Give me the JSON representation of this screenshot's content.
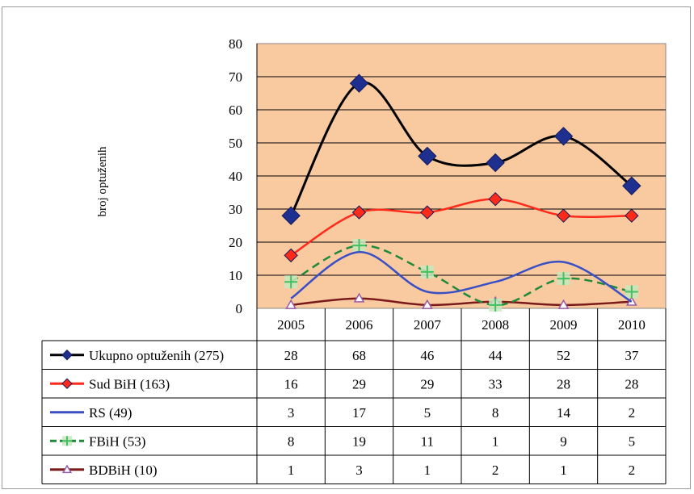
{
  "chart_data": {
    "type": "line",
    "title": "",
    "xlabel": "",
    "ylabel": "broj optuženih",
    "ylim": [
      0,
      80
    ],
    "yticks": [
      "0",
      "10",
      "20",
      "30",
      "40",
      "50",
      "60",
      "70",
      "80"
    ],
    "categories": [
      "2005",
      "2006",
      "2007",
      "2008",
      "2009",
      "2010"
    ],
    "plot_background": "#f9c9a0",
    "grid": "horizontal",
    "legend": "data-table",
    "series": [
      {
        "name": "Ukupno optuženih (275)",
        "values": [
          28,
          68,
          46,
          44,
          52,
          37
        ],
        "color": "#000000",
        "marker_color": "#1f2f8f",
        "marker": "diamond",
        "display": [
          "28",
          "68",
          "46",
          "44",
          "52",
          "37"
        ]
      },
      {
        "name": "Sud BiH (163)",
        "values": [
          16,
          29,
          29,
          33,
          28,
          28
        ],
        "color": "#ff2a1a",
        "marker_color": "#ff2a1a",
        "marker": "diamond",
        "display": [
          "16",
          "29",
          "29",
          "33",
          "28",
          "28"
        ]
      },
      {
        "name": "RS (49)",
        "values": [
          3,
          17,
          5,
          8,
          14,
          2
        ],
        "color": "#3a4fc4",
        "marker_color": "#3a4fc4",
        "marker": "none",
        "display": [
          "3",
          "17",
          "5",
          "8",
          "14",
          "2"
        ]
      },
      {
        "name": "FBiH (53)",
        "values": [
          8,
          19,
          11,
          1,
          9,
          5
        ],
        "color": "#1e8a3a",
        "marker_color": "#44c060",
        "marker": "plus",
        "display": [
          "8",
          "19",
          "11",
          "1",
          "9",
          "5"
        ]
      },
      {
        "name": "BDBiH (10)",
        "values": [
          1,
          3,
          1,
          2,
          1,
          2
        ],
        "color": "#7a1a1a",
        "marker_color": "#9a5aaa",
        "marker": "triangle",
        "display": [
          "1",
          "3",
          "1",
          "2",
          "1",
          "2"
        ]
      }
    ]
  }
}
